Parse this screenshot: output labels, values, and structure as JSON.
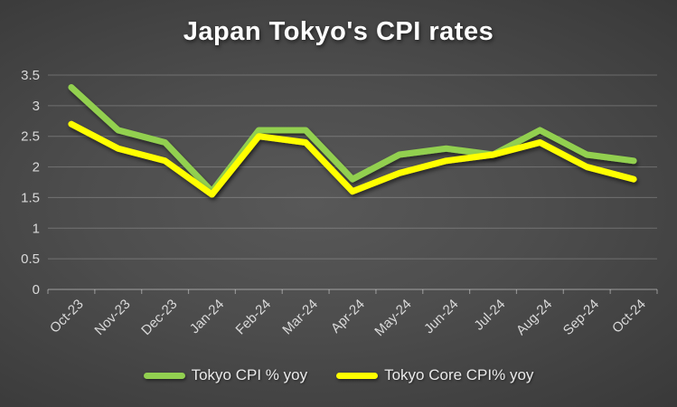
{
  "title": "Japan Tokyo's CPI rates",
  "colors": {
    "title_text": "#ffffff",
    "tick_label": "#d9d9d9",
    "grid": "rgba(255,255,255,0.22)",
    "axis": "rgba(255,255,255,0.38)",
    "series_cpi": "#92d050",
    "series_core_cpi": "#ffff00",
    "legend_text": "#eaeaea"
  },
  "chart_data": {
    "type": "line",
    "title": "Japan Tokyo's CPI rates",
    "categories": [
      "Oct-23",
      "Nov-23",
      "Dec-23",
      "Jan-24",
      "Feb-24",
      "Mar-24",
      "Apr-24",
      "May-24",
      "Jun-24",
      "Jul-24",
      "Aug-24",
      "Sep-24",
      "Oct-24"
    ],
    "series": [
      {
        "name": "Tokyo CPI % yoy",
        "color": "#92d050",
        "values": [
          3.3,
          2.6,
          2.4,
          1.6,
          2.6,
          2.6,
          1.8,
          2.2,
          2.3,
          2.2,
          2.6,
          2.2,
          2.1
        ]
      },
      {
        "name": "Tokyo Core CPI% yoy",
        "color": "#ffff00",
        "values": [
          2.7,
          2.3,
          2.1,
          1.55,
          2.5,
          2.4,
          1.6,
          1.9,
          2.1,
          2.2,
          2.4,
          2.0,
          1.8
        ]
      }
    ],
    "xlabel": "",
    "ylabel": "",
    "ylim": [
      0,
      3.5
    ],
    "ytick_labels": [
      "0",
      "0.5",
      "1",
      "1.5",
      "2",
      "2.5",
      "3",
      "3.5"
    ],
    "grid": true,
    "legend_position": "bottom",
    "x_label_rotation_deg": -45
  },
  "legend": {
    "items": [
      {
        "label": "Tokyo CPI % yoy",
        "color": "#92d050"
      },
      {
        "label": "Tokyo Core CPI% yoy",
        "color": "#ffff00"
      }
    ]
  }
}
